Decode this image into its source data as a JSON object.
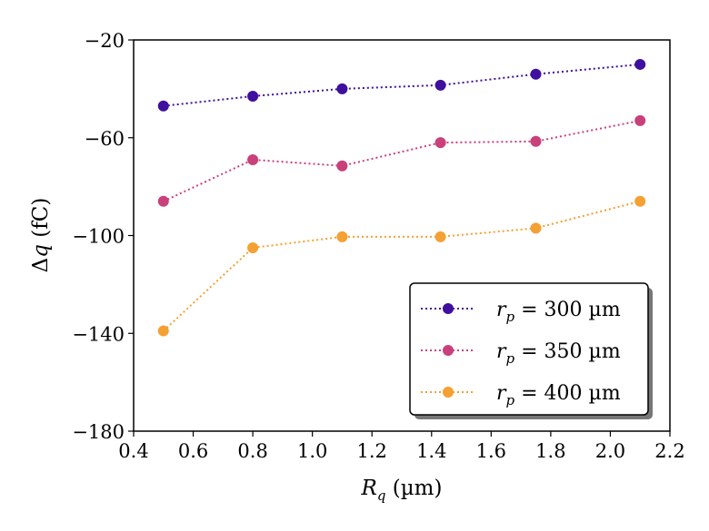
{
  "chart_data": {
    "type": "line",
    "title": "",
    "xlabel": "R_q (µm)",
    "ylabel": "Δq (fC)",
    "xlim": [
      0.4,
      2.2
    ],
    "ylim": [
      -180,
      -20
    ],
    "xticks": [
      "0.4",
      "0.6",
      "0.8",
      "1.0",
      "1.2",
      "1.4",
      "1.6",
      "1.8",
      "2.0",
      "2.2"
    ],
    "yticks": [
      "−20",
      "−60",
      "−100",
      "−140",
      "−180"
    ],
    "xtick_values": [
      0.4,
      0.6,
      0.8,
      1.0,
      1.2,
      1.4,
      1.6,
      1.8,
      2.0,
      2.2
    ],
    "ytick_values": [
      -20,
      -60,
      -100,
      -140,
      -180
    ],
    "grid": false,
    "legend_position": "bottom-right",
    "line_style": "dotted",
    "marker": "circle",
    "x": [
      0.5,
      0.8,
      1.1,
      1.43,
      1.75,
      2.1
    ],
    "series": [
      {
        "name": "r_p = 300 µm",
        "color": "#3f0f9e",
        "values": [
          -47,
          -43,
          -40,
          -38.5,
          -34,
          -30
        ]
      },
      {
        "name": "r_p = 350 µm",
        "color": "#c9407a",
        "values": [
          -86,
          -69,
          -71.5,
          -62,
          -61.5,
          -53
        ]
      },
      {
        "name": "r_p = 400 µm",
        "color": "#f5a033",
        "values": [
          -139,
          -105,
          -100.5,
          -100.5,
          -97,
          -86
        ]
      }
    ]
  }
}
